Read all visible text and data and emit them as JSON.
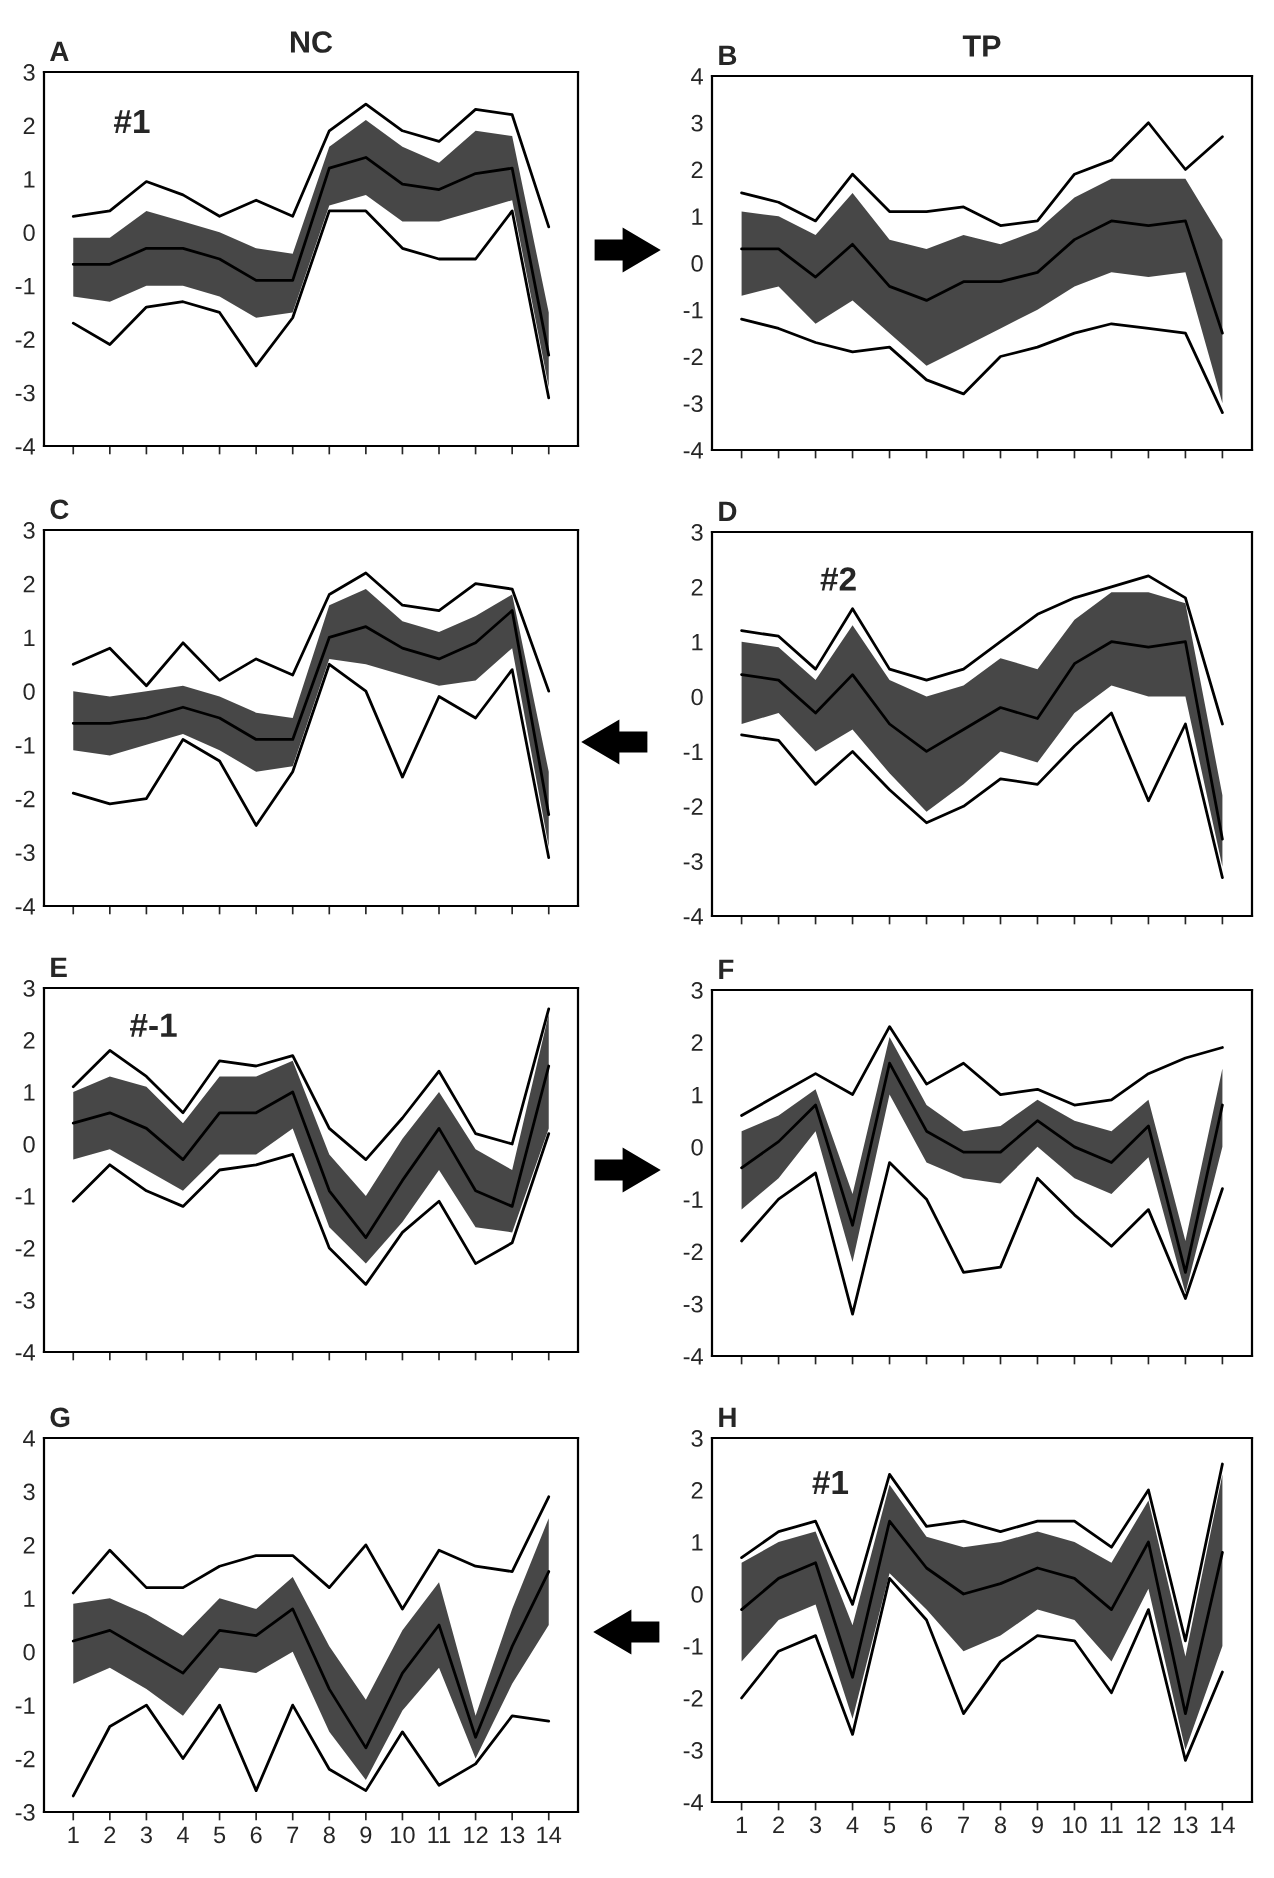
{
  "chart_data": [
    {
      "type": "line",
      "title": "A",
      "subtitle": "NC",
      "annotations": [
        "#1"
      ],
      "x": [
        1,
        2,
        3,
        4,
        5,
        6,
        7,
        8,
        9,
        10,
        11,
        12,
        13,
        14
      ],
      "xlim": [
        0.2,
        14.8
      ],
      "xticks": [
        1,
        2,
        3,
        4,
        5,
        6,
        7,
        8,
        9,
        10,
        11,
        12,
        13,
        14
      ],
      "ylim": [
        -4,
        3
      ],
      "yticks": [
        -4,
        -3,
        -2,
        -1,
        0,
        1,
        2,
        3
      ],
      "tick_labels": "y",
      "series": [
        {
          "color": "#000000",
          "values": [
            0.3,
            0.4,
            0.95,
            0.7,
            0.3,
            0.6,
            0.3,
            1.9,
            2.4,
            1.9,
            1.7,
            2.3,
            2.2,
            0.1
          ]
        },
        {
          "color": "#000000",
          "values": [
            -0.6,
            -0.6,
            -0.3,
            -0.3,
            -0.5,
            -0.9,
            -0.9,
            1.2,
            1.4,
            0.9,
            0.8,
            1.1,
            1.2,
            -2.3
          ],
          "lower": [
            -1.2,
            -1.3,
            -1.0,
            -1.0,
            -1.2,
            -1.6,
            -1.5,
            0.5,
            0.7,
            0.2,
            0.2,
            0.4,
            0.6,
            -2.9
          ],
          "upper": [
            -0.1,
            -0.1,
            0.4,
            0.2,
            0.0,
            -0.3,
            -0.4,
            1.6,
            2.1,
            1.6,
            1.3,
            1.9,
            1.8,
            -1.5
          ]
        },
        {
          "color": "#000000",
          "values": [
            -1.7,
            -2.1,
            -1.4,
            -1.3,
            -1.5,
            -2.5,
            -1.6,
            0.4,
            0.4,
            -0.3,
            -0.5,
            -0.5,
            0.4,
            -3.1
          ]
        }
      ]
    },
    {
      "type": "line",
      "title": "B",
      "subtitle": "TP",
      "x": [
        1,
        2,
        3,
        4,
        5,
        6,
        7,
        8,
        9,
        10,
        11,
        12,
        13,
        14
      ],
      "xlim": [
        0.2,
        14.8
      ],
      "xticks": [
        1,
        2,
        3,
        4,
        5,
        6,
        7,
        8,
        9,
        10,
        11,
        12,
        13,
        14
      ],
      "ylim": [
        -4,
        4
      ],
      "yticks": [
        -4,
        -3,
        -2,
        -1,
        0,
        1,
        2,
        3,
        4
      ],
      "tick_labels": "y",
      "series": [
        {
          "color": "#000000",
          "values": [
            1.5,
            1.3,
            0.9,
            1.9,
            1.1,
            1.1,
            1.2,
            0.8,
            0.9,
            1.9,
            2.2,
            3.0,
            2.0,
            2.7
          ]
        },
        {
          "color": "#000000",
          "values": [
            0.3,
            0.3,
            -0.3,
            0.4,
            -0.5,
            -0.8,
            -0.4,
            -0.4,
            -0.2,
            0.5,
            0.9,
            0.8,
            0.9,
            -1.5
          ],
          "lower": [
            -0.7,
            -0.5,
            -1.3,
            -0.8,
            -1.5,
            -2.2,
            -1.8,
            -1.4,
            -1.0,
            -0.5,
            -0.2,
            -0.3,
            -0.2,
            -3.0
          ],
          "upper": [
            1.1,
            1.0,
            0.6,
            1.5,
            0.5,
            0.3,
            0.6,
            0.4,
            0.7,
            1.4,
            1.8,
            1.8,
            1.8,
            0.5
          ]
        },
        {
          "color": "#000000",
          "values": [
            -1.2,
            -1.4,
            -1.7,
            -1.9,
            -1.8,
            -2.5,
            -2.8,
            -2.0,
            -1.8,
            -1.5,
            -1.3,
            -1.4,
            -1.5,
            -3.2
          ]
        }
      ]
    },
    {
      "type": "line",
      "title": "C",
      "x": [
        1,
        2,
        3,
        4,
        5,
        6,
        7,
        8,
        9,
        10,
        11,
        12,
        13,
        14
      ],
      "xlim": [
        0.2,
        14.8
      ],
      "xticks": [
        1,
        2,
        3,
        4,
        5,
        6,
        7,
        8,
        9,
        10,
        11,
        12,
        13,
        14
      ],
      "ylim": [
        -4,
        3
      ],
      "yticks": [
        -4,
        -3,
        -2,
        -1,
        0,
        1,
        2,
        3
      ],
      "tick_labels": "y",
      "series": [
        {
          "color": "#000000",
          "values": [
            0.5,
            0.8,
            0.1,
            0.9,
            0.2,
            0.6,
            0.3,
            1.8,
            2.2,
            1.6,
            1.5,
            2.0,
            1.9,
            0.0
          ]
        },
        {
          "color": "#000000",
          "values": [
            -0.6,
            -0.6,
            -0.5,
            -0.3,
            -0.5,
            -0.9,
            -0.9,
            1.0,
            1.2,
            0.8,
            0.6,
            0.9,
            1.5,
            -2.3
          ],
          "lower": [
            -1.1,
            -1.2,
            -1.0,
            -0.8,
            -1.1,
            -1.5,
            -1.4,
            0.6,
            0.5,
            0.3,
            0.1,
            0.2,
            0.8,
            -2.9
          ],
          "upper": [
            0.0,
            -0.1,
            0.0,
            0.1,
            -0.1,
            -0.4,
            -0.5,
            1.6,
            1.9,
            1.3,
            1.1,
            1.4,
            1.8,
            -1.5
          ]
        },
        {
          "color": "#000000",
          "values": [
            -1.9,
            -2.1,
            -2.0,
            -0.9,
            -1.3,
            -2.5,
            -1.5,
            0.5,
            0.0,
            -1.6,
            -0.1,
            -0.5,
            0.4,
            -3.1
          ]
        }
      ]
    },
    {
      "type": "line",
      "title": "D",
      "annotations": [
        "#2"
      ],
      "x": [
        1,
        2,
        3,
        4,
        5,
        6,
        7,
        8,
        9,
        10,
        11,
        12,
        13,
        14
      ],
      "xlim": [
        0.2,
        14.8
      ],
      "xticks": [
        1,
        2,
        3,
        4,
        5,
        6,
        7,
        8,
        9,
        10,
        11,
        12,
        13,
        14
      ],
      "ylim": [
        -4,
        3
      ],
      "yticks": [
        -4,
        -3,
        -2,
        -1,
        0,
        1,
        2,
        3
      ],
      "tick_labels": "y",
      "series": [
        {
          "color": "#000000",
          "values": [
            1.2,
            1.1,
            0.5,
            1.6,
            0.5,
            0.3,
            0.5,
            1.0,
            1.5,
            1.8,
            2.0,
            2.2,
            1.8,
            -0.5
          ]
        },
        {
          "color": "#000000",
          "values": [
            0.4,
            0.3,
            -0.3,
            0.4,
            -0.5,
            -1.0,
            -0.6,
            -0.2,
            -0.4,
            0.6,
            1.0,
            0.9,
            1.0,
            -2.6
          ],
          "lower": [
            -0.5,
            -0.3,
            -1.0,
            -0.6,
            -1.4,
            -2.1,
            -1.6,
            -1.0,
            -1.2,
            -0.3,
            0.2,
            0.0,
            0.0,
            -3.1
          ],
          "upper": [
            1.0,
            0.9,
            0.3,
            1.3,
            0.3,
            0.0,
            0.2,
            0.7,
            0.5,
            1.4,
            1.9,
            1.9,
            1.7,
            -1.8
          ]
        },
        {
          "color": "#000000",
          "values": [
            -0.7,
            -0.8,
            -1.6,
            -1.0,
            -1.7,
            -2.3,
            -2.0,
            -1.5,
            -1.6,
            -0.9,
            -0.3,
            -1.9,
            -0.5,
            -3.3
          ]
        }
      ]
    },
    {
      "type": "line",
      "title": "E",
      "annotations": [
        "#-1"
      ],
      "x": [
        1,
        2,
        3,
        4,
        5,
        6,
        7,
        8,
        9,
        10,
        11,
        12,
        13,
        14
      ],
      "xlim": [
        0.2,
        14.8
      ],
      "xticks": [
        1,
        2,
        3,
        4,
        5,
        6,
        7,
        8,
        9,
        10,
        11,
        12,
        13,
        14
      ],
      "ylim": [
        -4,
        3
      ],
      "yticks": [
        -4,
        -3,
        -2,
        -1,
        0,
        1,
        2,
        3
      ],
      "tick_labels": "y",
      "series": [
        {
          "color": "#000000",
          "values": [
            1.1,
            1.8,
            1.3,
            0.6,
            1.6,
            1.5,
            1.7,
            0.3,
            -0.3,
            0.5,
            1.4,
            0.2,
            0.0,
            2.6
          ]
        },
        {
          "color": "#000000",
          "values": [
            0.4,
            0.6,
            0.3,
            -0.3,
            0.6,
            0.6,
            1.0,
            -0.9,
            -1.8,
            -0.7,
            0.3,
            -0.9,
            -1.2,
            1.5
          ],
          "lower": [
            -0.3,
            -0.1,
            -0.5,
            -0.9,
            -0.2,
            -0.2,
            0.3,
            -1.6,
            -2.3,
            -1.5,
            -0.5,
            -1.6,
            -1.7,
            0.3
          ],
          "upper": [
            1.0,
            1.3,
            1.1,
            0.4,
            1.3,
            1.3,
            1.6,
            -0.2,
            -1.0,
            0.1,
            1.0,
            -0.1,
            -0.5,
            2.5
          ]
        },
        {
          "color": "#000000",
          "values": [
            -1.1,
            -0.4,
            -0.9,
            -1.2,
            -0.5,
            -0.4,
            -0.2,
            -2.0,
            -2.7,
            -1.7,
            -1.1,
            -2.3,
            -1.9,
            0.2
          ]
        }
      ]
    },
    {
      "type": "line",
      "title": "F",
      "x": [
        1,
        2,
        3,
        4,
        5,
        6,
        7,
        8,
        9,
        10,
        11,
        12,
        13,
        14
      ],
      "xlim": [
        0.2,
        14.8
      ],
      "xticks": [
        1,
        2,
        3,
        4,
        5,
        6,
        7,
        8,
        9,
        10,
        11,
        12,
        13,
        14
      ],
      "ylim": [
        -4,
        3
      ],
      "yticks": [
        -4,
        -3,
        -2,
        -1,
        0,
        1,
        2,
        3
      ],
      "tick_labels": "y",
      "series": [
        {
          "color": "#000000",
          "values": [
            0.6,
            1.0,
            1.4,
            1.0,
            2.3,
            1.2,
            1.6,
            1.0,
            1.1,
            0.8,
            0.9,
            1.4,
            1.7,
            1.9
          ]
        },
        {
          "color": "#000000",
          "values": [
            -0.4,
            0.1,
            0.8,
            -1.5,
            1.6,
            0.3,
            -0.1,
            -0.1,
            0.5,
            0.0,
            -0.3,
            0.4,
            -2.4,
            0.8
          ],
          "lower": [
            -1.2,
            -0.6,
            0.3,
            -2.2,
            1.0,
            -0.3,
            -0.6,
            -0.7,
            0.0,
            -0.6,
            -0.9,
            -0.2,
            -2.8,
            0.0
          ],
          "upper": [
            0.3,
            0.6,
            1.1,
            -0.9,
            2.1,
            0.8,
            0.3,
            0.4,
            0.9,
            0.5,
            0.3,
            0.9,
            -1.8,
            1.5
          ]
        },
        {
          "color": "#000000",
          "values": [
            -1.8,
            -1.0,
            -0.5,
            -3.2,
            -0.3,
            -1.0,
            -2.4,
            -2.3,
            -0.6,
            -1.3,
            -1.9,
            -1.2,
            -2.9,
            -0.8
          ]
        }
      ]
    },
    {
      "type": "line",
      "title": "G",
      "x": [
        1,
        2,
        3,
        4,
        5,
        6,
        7,
        8,
        9,
        10,
        11,
        12,
        13,
        14
      ],
      "xlim": [
        0.2,
        14.8
      ],
      "xticks": [
        1,
        2,
        3,
        4,
        5,
        6,
        7,
        8,
        9,
        10,
        11,
        12,
        13,
        14
      ],
      "ylim": [
        -3,
        4
      ],
      "yticks": [
        -3,
        -2,
        -1,
        0,
        1,
        2,
        3,
        4
      ],
      "series": [
        {
          "color": "#000000",
          "values": [
            1.1,
            1.9,
            1.2,
            1.2,
            1.6,
            1.8,
            1.8,
            1.2,
            2.0,
            0.8,
            1.9,
            1.6,
            1.5,
            2.9
          ]
        },
        {
          "color": "#000000",
          "values": [
            0.2,
            0.4,
            0.0,
            -0.4,
            0.4,
            0.3,
            0.8,
            -0.7,
            -1.8,
            -0.4,
            0.5,
            -1.6,
            0.1,
            1.5
          ],
          "lower": [
            -0.6,
            -0.3,
            -0.7,
            -1.2,
            -0.3,
            -0.4,
            0.0,
            -1.5,
            -2.4,
            -1.1,
            -0.3,
            -2.0,
            -0.6,
            0.5
          ],
          "upper": [
            0.9,
            1.0,
            0.7,
            0.3,
            1.0,
            0.8,
            1.4,
            0.1,
            -0.9,
            0.4,
            1.3,
            -1.2,
            0.8,
            2.5
          ]
        },
        {
          "color": "#000000",
          "values": [
            -2.7,
            -1.4,
            -1.0,
            -2.0,
            -1.0,
            -2.6,
            -1.0,
            -2.2,
            -2.6,
            -1.5,
            -2.5,
            -2.1,
            -1.2,
            -1.3
          ]
        }
      ]
    },
    {
      "type": "line",
      "title": "H",
      "annotations": [
        "#1"
      ],
      "x": [
        1,
        2,
        3,
        4,
        5,
        6,
        7,
        8,
        9,
        10,
        11,
        12,
        13,
        14
      ],
      "xlim": [
        0.2,
        14.8
      ],
      "xticks": [
        1,
        2,
        3,
        4,
        5,
        6,
        7,
        8,
        9,
        10,
        11,
        12,
        13,
        14
      ],
      "ylim": [
        -4,
        3
      ],
      "yticks": [
        -4,
        -3,
        -2,
        -1,
        0,
        1,
        2,
        3
      ],
      "series": [
        {
          "color": "#000000",
          "values": [
            0.7,
            1.2,
            1.4,
            -0.2,
            2.3,
            1.3,
            1.4,
            1.2,
            1.4,
            1.4,
            0.9,
            2.0,
            -0.9,
            2.5
          ]
        },
        {
          "color": "#000000",
          "values": [
            -0.3,
            0.3,
            0.6,
            -1.6,
            1.4,
            0.5,
            0.0,
            0.2,
            0.5,
            0.3,
            -0.3,
            1.0,
            -2.3,
            0.8
          ],
          "lower": [
            -1.3,
            -0.5,
            -0.2,
            -2.4,
            0.4,
            -0.3,
            -1.1,
            -0.8,
            -0.3,
            -0.5,
            -1.3,
            0.1,
            -3.0,
            -1.0
          ],
          "upper": [
            0.6,
            1.0,
            1.2,
            -0.6,
            2.1,
            1.1,
            0.9,
            1.0,
            1.2,
            1.0,
            0.6,
            1.8,
            -1.2,
            2.3
          ]
        },
        {
          "color": "#000000",
          "values": [
            -2.0,
            -1.1,
            -0.8,
            -2.7,
            0.3,
            -0.5,
            -2.3,
            -1.3,
            -0.8,
            -0.9,
            -1.9,
            -0.3,
            -3.2,
            -1.5
          ]
        }
      ]
    }
  ]
}
